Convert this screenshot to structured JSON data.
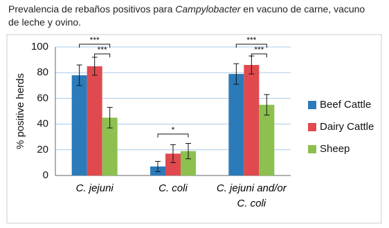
{
  "chart_data": {
    "type": "bar",
    "title": [
      "Prevalencia de rebaños positivos para ",
      "Campylobacter",
      " en vacuno de carne, vacuno de leche y ovino."
    ],
    "y_label": "% positive herds",
    "categories": [
      "C. jejuni",
      "C. coli",
      "C. jejuni and/or C. coli"
    ],
    "series": [
      {
        "name": "Beef Cattle",
        "color": "#2b7bba",
        "values": [
          78,
          7,
          79
        ],
        "errors": [
          8,
          4,
          8
        ]
      },
      {
        "name": "Dairy Cattle",
        "color": "#e04a4f",
        "values": [
          85,
          17,
          86
        ],
        "errors": [
          7,
          7,
          7
        ]
      },
      {
        "name": "Sheep",
        "color": "#8dc04f",
        "values": [
          45,
          19,
          55
        ],
        "errors": [
          8,
          6,
          8
        ]
      }
    ],
    "annotations": [
      "***",
      "***",
      "*",
      "***",
      "***"
    ],
    "ylim": [
      0,
      100
    ],
    "yticks": [
      0,
      20,
      40,
      60,
      80,
      100
    ],
    "grid": true,
    "legend": "right"
  }
}
